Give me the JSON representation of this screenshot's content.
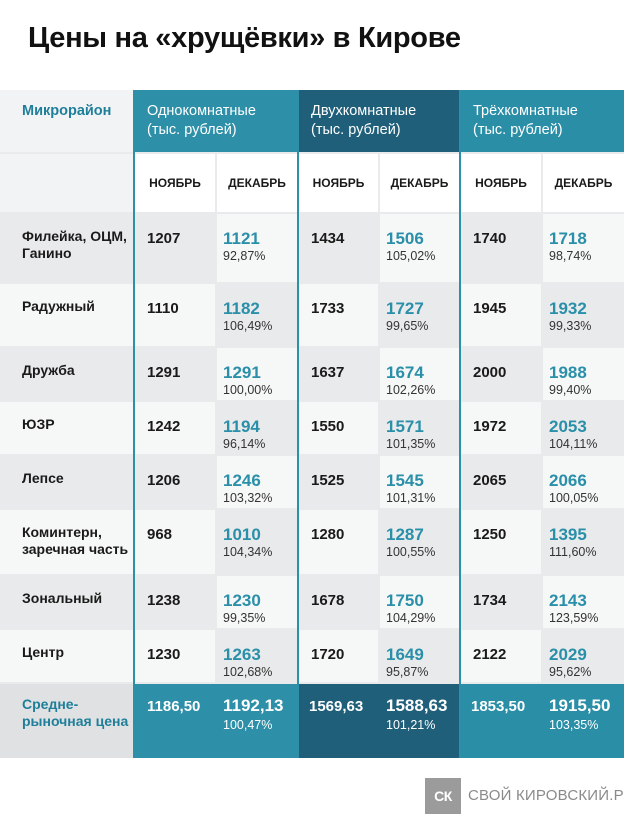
{
  "title": "Цены на «хрущёвки» в Кирове",
  "header": {
    "district_label": "Микрорайон",
    "groups": [
      {
        "line1": "Однокомнатные",
        "line2": "(тыс. рублей)"
      },
      {
        "line1": "Двухкомнатные",
        "line2": "(тыс. рублей)"
      },
      {
        "line1": "Трёхкомнатные",
        "line2": "(тыс. рублей)"
      }
    ],
    "month_nov": "НОЯБРЬ",
    "month_dec": "ДЕКАБРЬ"
  },
  "rows": [
    {
      "name": "Филейка, ОЦМ, Ганино",
      "r1_nov": "1207",
      "r1_dec": "1121",
      "r1_pct": "92,87%",
      "r2_nov": "1434",
      "r2_dec": "1506",
      "r2_pct": "105,02%",
      "r3_nov": "1740",
      "r3_dec": "1718",
      "r3_pct": "98,74%"
    },
    {
      "name": "Радужный",
      "r1_nov": "1110",
      "r1_dec": "1182",
      "r1_pct": "106,49%",
      "r2_nov": "1733",
      "r2_dec": "1727",
      "r2_pct": "99,65%",
      "r3_nov": "1945",
      "r3_dec": "1932",
      "r3_pct": "99,33%"
    },
    {
      "name": "Дружба",
      "r1_nov": "1291",
      "r1_dec": "1291",
      "r1_pct": "100,00%",
      "r2_nov": "1637",
      "r2_dec": "1674",
      "r2_pct": "102,26%",
      "r3_nov": "2000",
      "r3_dec": "1988",
      "r3_pct": "99,40%"
    },
    {
      "name": "ЮЗР",
      "r1_nov": "1242",
      "r1_dec": "1194",
      "r1_pct": "96,14%",
      "r2_nov": "1550",
      "r2_dec": "1571",
      "r2_pct": "101,35%",
      "r3_nov": "1972",
      "r3_dec": "2053",
      "r3_pct": "104,11%"
    },
    {
      "name": "Лепсе",
      "r1_nov": "1206",
      "r1_dec": "1246",
      "r1_pct": "103,32%",
      "r2_nov": "1525",
      "r2_dec": "1545",
      "r2_pct": "101,31%",
      "r3_nov": "2065",
      "r3_dec": "2066",
      "r3_pct": "100,05%"
    },
    {
      "name": "Коминтерн, заречная часть",
      "r1_nov": "968",
      "r1_dec": "1010",
      "r1_pct": "104,34%",
      "r2_nov": "1280",
      "r2_dec": "1287",
      "r2_pct": "100,55%",
      "r3_nov": "1250",
      "r3_dec": "1395",
      "r3_pct": "111,60%"
    },
    {
      "name": "Зональный",
      "r1_nov": "1238",
      "r1_dec": "1230",
      "r1_pct": "99,35%",
      "r2_nov": "1678",
      "r2_dec": "1750",
      "r2_pct": "104,29%",
      "r3_nov": "1734",
      "r3_dec": "2143",
      "r3_pct": "123,59%"
    },
    {
      "name": "Центр",
      "r1_nov": "1230",
      "r1_dec": "1263",
      "r1_pct": "102,68%",
      "r2_nov": "1720",
      "r2_dec": "1649",
      "r2_pct": "95,87%",
      "r3_nov": "2122",
      "r3_dec": "2029",
      "r3_pct": "95,62%"
    }
  ],
  "average": {
    "name": "Средне-рыночная цена",
    "r1_nov": "1186,50",
    "r1_dec": "1192,13",
    "r1_pct": "100,47%",
    "r2_nov": "1569,63",
    "r2_dec": "1588,63",
    "r2_pct": "101,21%",
    "r3_nov": "1853,50",
    "r3_dec": "1915,50",
    "r3_pct": "103,35%"
  },
  "logo": {
    "mark": "СК",
    "text": "СВОЙ КИРОВСКИЙ.РФ"
  },
  "colors": {
    "accent": "#2a8fa9",
    "band_one": "#2d8fa8",
    "band_two": "#1f5f7a",
    "band_three": "#2a8ea6"
  }
}
